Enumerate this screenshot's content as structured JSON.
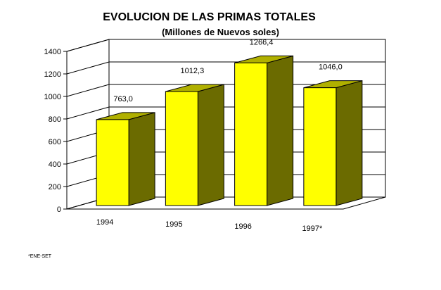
{
  "chart_data": {
    "type": "bar",
    "title": "EVOLUCION DE LAS PRIMAS TOTALES",
    "subtitle": "(Millones de Nuevos soles)",
    "categories": [
      "1994",
      "1995",
      "1996",
      "1997*"
    ],
    "values": [
      763.0,
      1012.3,
      1266.4,
      1046.0
    ],
    "data_labels": [
      "763,0",
      "1012,3",
      "1266,4",
      "1046,0"
    ],
    "y_ticks": [
      0,
      200,
      400,
      600,
      800,
      1000,
      1200,
      1400
    ],
    "ylim": [
      0,
      1400
    ],
    "grid": true,
    "style": "3d-bar",
    "colors": {
      "front": "#ffff00",
      "side": "#6b6b00",
      "top": "#b0b000",
      "edge": "#000000"
    },
    "footnote": "*ENE-SET"
  }
}
